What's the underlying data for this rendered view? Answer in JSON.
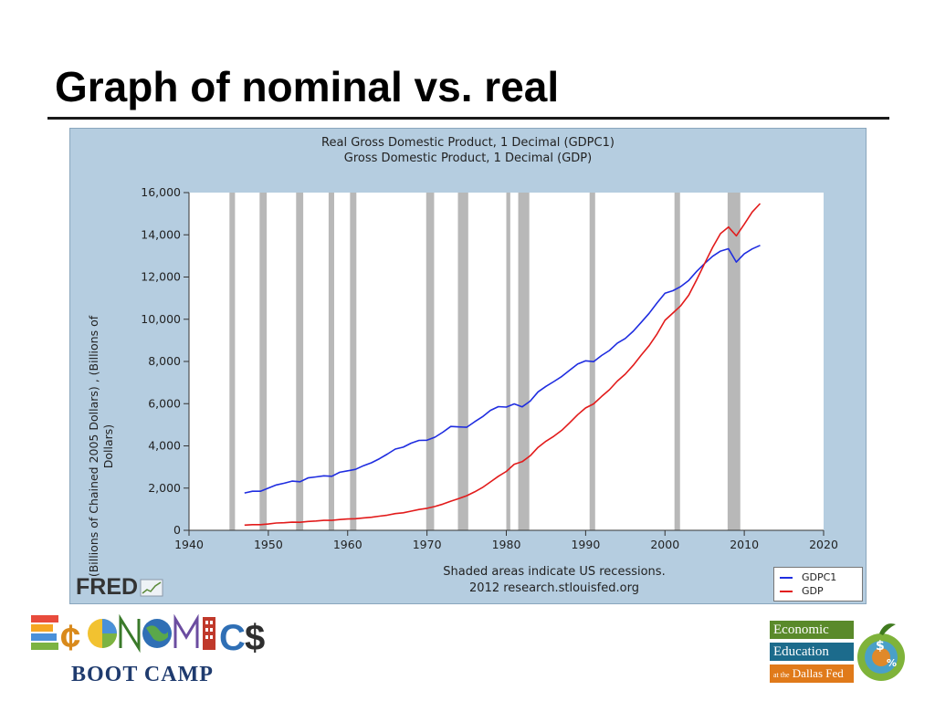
{
  "slide": {
    "title": "Graph of nominal vs. real"
  },
  "fred": {
    "title_line1": "Real Gross Domestic Product, 1 Decimal (GDPC1)",
    "title_line2": "Gross Domestic Product, 1 Decimal (GDP)",
    "ylabel": "(Billions of Chained 2005 Dollars) , (Billions of Dollars)",
    "footnote_line1": "Shaded areas indicate US recessions.",
    "footnote_line2": "2012 research.stlouisfed.org",
    "logo_text": "FRED"
  },
  "logos": {
    "economics_word": "ECONOMICS",
    "boot_camp": "BOOT CAMP",
    "dallas_line1": "Economic",
    "dallas_line2": "Education",
    "dallas_line3_prefix": "at the",
    "dallas_line3": "Dallas Fed"
  },
  "colors": {
    "gdpc1": "#1f2de0",
    "gdp": "#e21b1b",
    "recession": "#b8b8b8",
    "panel": "#b5cde0"
  },
  "chart_data": {
    "type": "line",
    "title": "Real Gross Domestic Product, 1 Decimal (GDPC1)\nGross Domestic Product, 1 Decimal (GDP)",
    "xlabel": "",
    "ylabel": "(Billions of Chained 2005 Dollars) , (Billions of Dollars)",
    "xlim": [
      1940,
      2020
    ],
    "ylim": [
      0,
      16000
    ],
    "xticks": [
      1940,
      1950,
      1960,
      1970,
      1980,
      1990,
      2000,
      2010,
      2020
    ],
    "yticks": [
      0,
      2000,
      4000,
      6000,
      8000,
      10000,
      12000,
      14000,
      16000
    ],
    "ytick_labels": [
      "0",
      "2,000",
      "4,000",
      "6,000",
      "8,000",
      "10,000",
      "12,000",
      "14,000",
      "16,000"
    ],
    "grid": false,
    "legend_position": "bottom-right",
    "recessions": [
      [
        1945.1,
        1945.8
      ],
      [
        1948.9,
        1949.8
      ],
      [
        1953.5,
        1954.4
      ],
      [
        1957.6,
        1958.3
      ],
      [
        1960.3,
        1961.1
      ],
      [
        1969.9,
        1970.9
      ],
      [
        1973.9,
        1975.2
      ],
      [
        1980.0,
        1980.5
      ],
      [
        1981.5,
        1982.9
      ],
      [
        1990.5,
        1991.2
      ],
      [
        2001.2,
        2001.9
      ],
      [
        2007.9,
        2009.5
      ]
    ],
    "series": [
      {
        "name": "GDPC1",
        "color": "#1f2de0",
        "points": [
          [
            1947,
            1770
          ],
          [
            1948,
            1850
          ],
          [
            1949,
            1850
          ],
          [
            1950,
            2000
          ],
          [
            1951,
            2150
          ],
          [
            1952,
            2230
          ],
          [
            1953,
            2330
          ],
          [
            1954,
            2300
          ],
          [
            1955,
            2480
          ],
          [
            1956,
            2530
          ],
          [
            1957,
            2580
          ],
          [
            1958,
            2560
          ],
          [
            1959,
            2750
          ],
          [
            1960,
            2820
          ],
          [
            1961,
            2890
          ],
          [
            1962,
            3060
          ],
          [
            1963,
            3200
          ],
          [
            1964,
            3390
          ],
          [
            1965,
            3610
          ],
          [
            1966,
            3850
          ],
          [
            1967,
            3940
          ],
          [
            1968,
            4130
          ],
          [
            1969,
            4260
          ],
          [
            1970,
            4270
          ],
          [
            1971,
            4410
          ],
          [
            1972,
            4650
          ],
          [
            1973,
            4920
          ],
          [
            1974,
            4900
          ],
          [
            1975,
            4880
          ],
          [
            1976,
            5140
          ],
          [
            1977,
            5380
          ],
          [
            1978,
            5680
          ],
          [
            1979,
            5860
          ],
          [
            1980,
            5840
          ],
          [
            1981,
            5990
          ],
          [
            1982,
            5850
          ],
          [
            1983,
            6120
          ],
          [
            1984,
            6560
          ],
          [
            1985,
            6820
          ],
          [
            1986,
            7050
          ],
          [
            1987,
            7290
          ],
          [
            1988,
            7590
          ],
          [
            1989,
            7880
          ],
          [
            1990,
            8030
          ],
          [
            1991,
            7990
          ],
          [
            1992,
            8280
          ],
          [
            1993,
            8520
          ],
          [
            1994,
            8870
          ],
          [
            1995,
            9090
          ],
          [
            1996,
            9430
          ],
          [
            1997,
            9850
          ],
          [
            1998,
            10280
          ],
          [
            1999,
            10770
          ],
          [
            2000,
            11230
          ],
          [
            2001,
            11350
          ],
          [
            2002,
            11550
          ],
          [
            2003,
            11840
          ],
          [
            2004,
            12270
          ],
          [
            2005,
            12640
          ],
          [
            2006,
            12980
          ],
          [
            2007,
            13230
          ],
          [
            2008,
            13340
          ],
          [
            2009,
            12710
          ],
          [
            2010,
            13100
          ],
          [
            2011,
            13330
          ],
          [
            2012,
            13500
          ]
        ]
      },
      {
        "name": "GDP",
        "color": "#e21b1b",
        "points": [
          [
            1947,
            245
          ],
          [
            1948,
            270
          ],
          [
            1949,
            270
          ],
          [
            1950,
            300
          ],
          [
            1951,
            345
          ],
          [
            1952,
            360
          ],
          [
            1953,
            385
          ],
          [
            1954,
            380
          ],
          [
            1955,
            420
          ],
          [
            1956,
            440
          ],
          [
            1957,
            470
          ],
          [
            1958,
            470
          ],
          [
            1959,
            510
          ],
          [
            1960,
            535
          ],
          [
            1961,
            550
          ],
          [
            1962,
            590
          ],
          [
            1963,
            620
          ],
          [
            1964,
            670
          ],
          [
            1965,
            720
          ],
          [
            1966,
            790
          ],
          [
            1967,
            830
          ],
          [
            1968,
            910
          ],
          [
            1969,
            985
          ],
          [
            1970,
            1040
          ],
          [
            1971,
            1130
          ],
          [
            1972,
            1240
          ],
          [
            1973,
            1380
          ],
          [
            1974,
            1500
          ],
          [
            1975,
            1640
          ],
          [
            1976,
            1820
          ],
          [
            1977,
            2030
          ],
          [
            1978,
            2290
          ],
          [
            1979,
            2560
          ],
          [
            1980,
            2790
          ],
          [
            1981,
            3130
          ],
          [
            1982,
            3250
          ],
          [
            1983,
            3530
          ],
          [
            1984,
            3930
          ],
          [
            1985,
            4220
          ],
          [
            1986,
            4460
          ],
          [
            1987,
            4740
          ],
          [
            1988,
            5100
          ],
          [
            1989,
            5480
          ],
          [
            1990,
            5800
          ],
          [
            1991,
            5990
          ],
          [
            1992,
            6340
          ],
          [
            1993,
            6660
          ],
          [
            1994,
            7070
          ],
          [
            1995,
            7400
          ],
          [
            1996,
            7820
          ],
          [
            1997,
            8300
          ],
          [
            1998,
            8750
          ],
          [
            1999,
            9300
          ],
          [
            2000,
            9950
          ],
          [
            2001,
            10290
          ],
          [
            2002,
            10640
          ],
          [
            2003,
            11140
          ],
          [
            2004,
            11870
          ],
          [
            2005,
            12640
          ],
          [
            2006,
            13400
          ],
          [
            2007,
            14060
          ],
          [
            2008,
            14370
          ],
          [
            2009,
            13950
          ],
          [
            2010,
            14500
          ],
          [
            2011,
            15080
          ],
          [
            2012,
            15480
          ]
        ]
      }
    ]
  }
}
